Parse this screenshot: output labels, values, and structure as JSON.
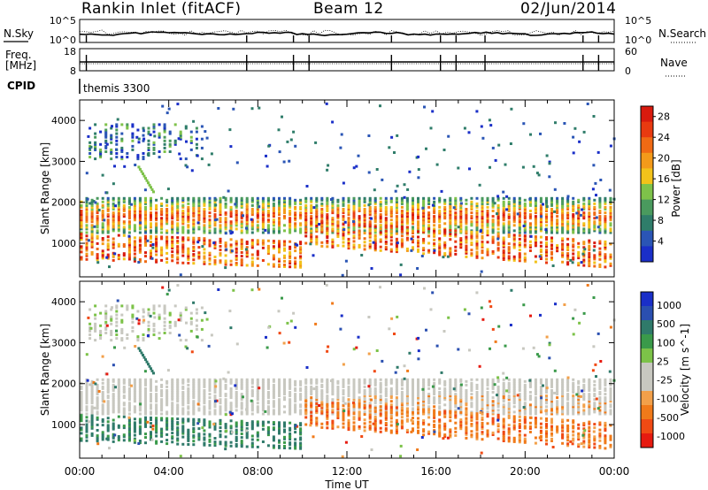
{
  "header": {
    "title": "Rankin Inlet (fitACF)",
    "beam": "Beam 12",
    "date": "02/Jun/2014"
  },
  "panels": {
    "nsky": {
      "left_label": "N.Sky",
      "right_label": "N.Search",
      "left_ticks": [
        "10^5",
        "10^0"
      ],
      "right_ticks": [
        "10^5",
        "10^0"
      ]
    },
    "freq": {
      "left_label_1": "Freq.",
      "left_label_2": "[MHz]",
      "right_label": "Nave",
      "left_ticks": [
        "18",
        "8"
      ],
      "right_ticks": [
        "60",
        "0"
      ]
    },
    "cpid": {
      "label": "CPID",
      "program": "themis 3300"
    }
  },
  "colors": {
    "power": [
      "#1a2fc8",
      "#2a55b5",
      "#2f7d6a",
      "#4a9a5e",
      "#7ec24a",
      "#f2c21a",
      "#f39a1a",
      "#f06a14",
      "#e83a10",
      "#d81a0e"
    ],
    "velocity": [
      "#e61a10",
      "#f04a14",
      "#f07a1a",
      "#f2a04a",
      "#c8c8c0",
      "#c8c8c0",
      "#7cc248",
      "#3a9a4a",
      "#2f7a6a",
      "#2a4fb0",
      "#1a2fc8"
    ]
  },
  "chart_data": [
    {
      "type": "heatmap",
      "title": "",
      "xlabel": "",
      "ylabel": "Slant Range [km]",
      "xlim": [
        "00:00",
        "24:00"
      ],
      "ylim": [
        180,
        4500
      ],
      "x_ticks": [
        "00:00",
        "04:00",
        "08:00",
        "12:00",
        "16:00",
        "20:00",
        "00:00"
      ],
      "y_ticks": [
        1000,
        2000,
        3000,
        4000
      ],
      "colorbar": {
        "label": "Power [dB]",
        "ticks": [
          4,
          8,
          12,
          16,
          20,
          24,
          28
        ],
        "range": [
          0,
          30
        ]
      },
      "features": [
        {
          "desc": "main echo band",
          "t_start_h": 0.0,
          "t_end_h": 24.0,
          "range_km": [
            1250,
            2100
          ],
          "value_db": [
            12,
            24
          ]
        },
        {
          "desc": "near-range echoes",
          "t_start_h": 0.0,
          "t_end_h": 24.0,
          "range_km": [
            350,
            1100
          ],
          "value_db": [
            20,
            30
          ]
        },
        {
          "desc": "far-range patch",
          "t_start_h": 0.3,
          "t_end_h": 5.5,
          "range_km": [
            3000,
            3900
          ],
          "value_db": [
            8,
            16
          ]
        }
      ]
    },
    {
      "type": "heatmap",
      "title": "",
      "xlabel": "Time UT",
      "ylabel": "Slant Range [km]",
      "xlim": [
        "00:00",
        "24:00"
      ],
      "ylim": [
        180,
        4500
      ],
      "x_ticks": [
        "00:00",
        "04:00",
        "08:00",
        "12:00",
        "16:00",
        "20:00",
        "00:00"
      ],
      "y_ticks": [
        1000,
        2000,
        3000,
        4000
      ],
      "colorbar": {
        "label": "Velocity [m s^-1]",
        "ticks": [
          "1000",
          "500",
          "100",
          "25",
          "-25",
          "-100",
          "-500",
          "-1000"
        ]
      },
      "features": [
        {
          "desc": "ground scatter band",
          "t_start_h": 0.0,
          "t_end_h": 24.0,
          "range_km": [
            1300,
            2100
          ],
          "velocity_ms": [
            -25,
            25
          ]
        },
        {
          "desc": "positive-velocity echoes",
          "t_start_h": 1.5,
          "t_end_h": 10.0,
          "range_km": [
            600,
            1200
          ],
          "velocity_ms": [
            100,
            500
          ]
        },
        {
          "desc": "negative-velocity echoes",
          "t_start_h": 10.0,
          "t_end_h": 24.0,
          "range_km": [
            300,
            1800
          ],
          "velocity_ms": [
            -500,
            -100
          ]
        }
      ]
    }
  ]
}
